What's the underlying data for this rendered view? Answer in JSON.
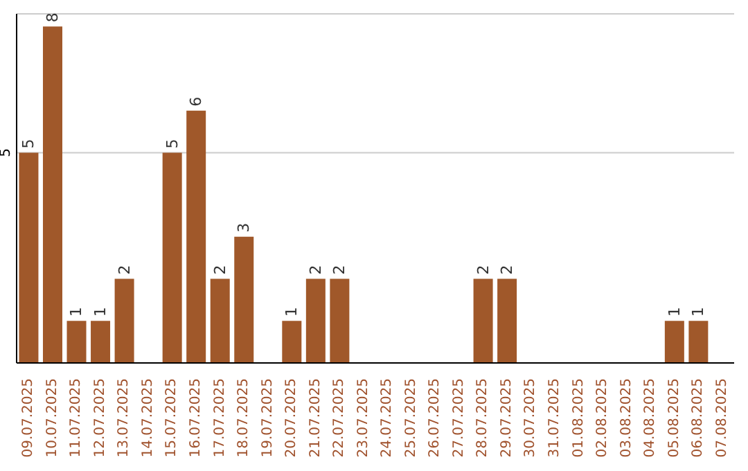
{
  "chart_data": {
    "type": "bar",
    "categories": [
      "09.07.2025",
      "10.07.2025",
      "11.07.2025",
      "12.07.2025",
      "13.07.2025",
      "14.07.2025",
      "15.07.2025",
      "16.07.2025",
      "17.07.2025",
      "18.07.2025",
      "19.07.2025",
      "20.07.2025",
      "21.07.2025",
      "22.07.2025",
      "23.07.2025",
      "24.07.2025",
      "25.07.2025",
      "26.07.2025",
      "27.07.2025",
      "28.07.2025",
      "29.07.2025",
      "30.07.2025",
      "31.07.2025",
      "01.08.2025",
      "02.08.2025",
      "03.08.2025",
      "04.08.2025",
      "05.08.2025",
      "06.08.2025",
      "07.08.2025"
    ],
    "values": [
      5,
      8,
      1,
      1,
      2,
      0,
      5,
      6,
      2,
      3,
      0,
      1,
      2,
      2,
      0,
      0,
      0,
      0,
      0,
      2,
      2,
      0,
      0,
      0,
      0,
      0,
      0,
      1,
      1,
      0
    ],
    "value_labels": [
      "5",
      "8",
      "1",
      "1",
      "2",
      null,
      "5",
      "6",
      "2",
      "3",
      null,
      "1",
      "2",
      "2",
      null,
      null,
      null,
      null,
      null,
      "2",
      "2",
      null,
      null,
      null,
      null,
      null,
      null,
      "1",
      "1",
      null
    ],
    "color": "#a0582a",
    "ylim": [
      0,
      8.3
    ],
    "yticks": [
      5
    ],
    "grid": "y"
  }
}
